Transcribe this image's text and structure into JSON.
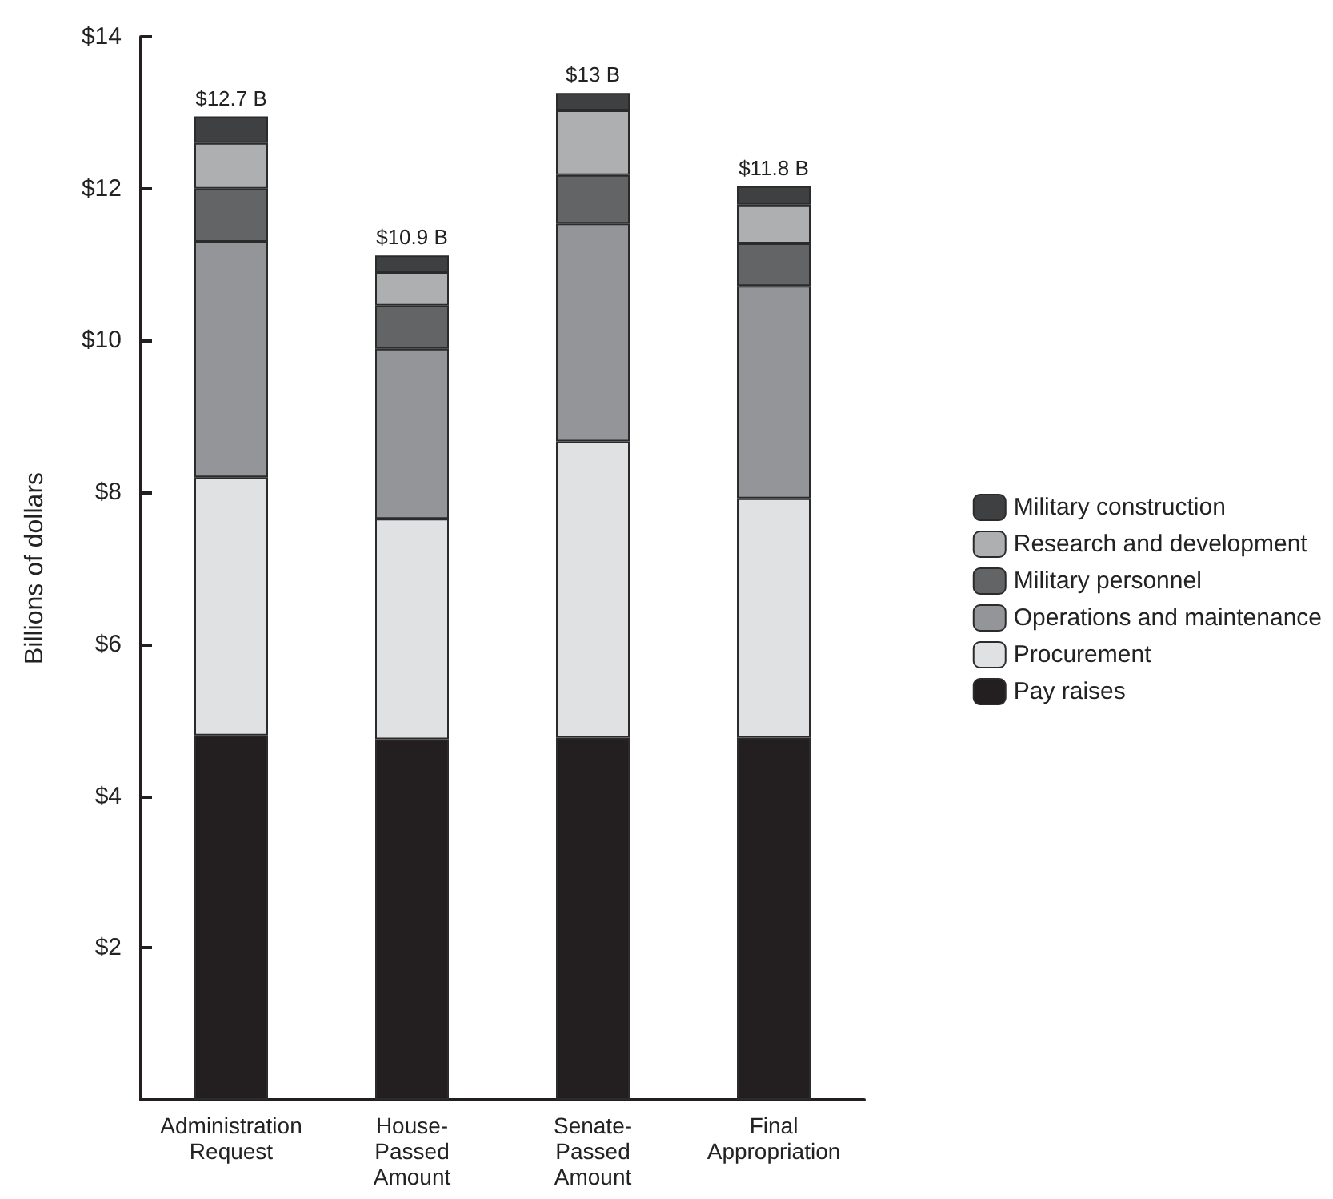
{
  "chart_data": {
    "type": "bar",
    "stacked": true,
    "ylabel": "Billions of dollars",
    "categories": [
      "Administration Request",
      "House-Passed Amount",
      "Senate-Passed Amount",
      "Final Appropriation"
    ],
    "series": [
      {
        "name": "Pay raises",
        "color": "#231f20",
        "values": [
          4.8,
          4.75,
          4.77,
          4.77
        ]
      },
      {
        "name": "Procurement",
        "color": "#e0e1e3",
        "values": [
          3.4,
          2.9,
          3.9,
          3.15
        ]
      },
      {
        "name": "Operations and maintenance",
        "color": "#939598",
        "values": [
          3.1,
          2.24,
          2.87,
          2.8
        ]
      },
      {
        "name": "Military personnel",
        "color": "#636466",
        "values": [
          0.7,
          0.57,
          0.64,
          0.56
        ]
      },
      {
        "name": "Research and development",
        "color": "#aeafb1",
        "values": [
          0.6,
          0.44,
          0.85,
          0.51
        ]
      },
      {
        "name": "Military construction",
        "color": "#3f4042",
        "values": [
          0.35,
          0.22,
          0.23,
          0.24
        ]
      }
    ],
    "totals": [
      "$12.7 B",
      "$10.9 B",
      "$13 B",
      "$11.8 B"
    ],
    "ylim": [
      0,
      14
    ],
    "yticks": [
      {
        "value": 2,
        "label": "$2"
      },
      {
        "value": 4,
        "label": "$4"
      },
      {
        "value": 6,
        "label": "$6"
      },
      {
        "value": 8,
        "label": "$8"
      },
      {
        "value": 10,
        "label": "$10"
      },
      {
        "value": 12,
        "label": "$12"
      },
      {
        "value": 14,
        "label": "$14"
      }
    ],
    "grid": false,
    "legend": "right"
  }
}
